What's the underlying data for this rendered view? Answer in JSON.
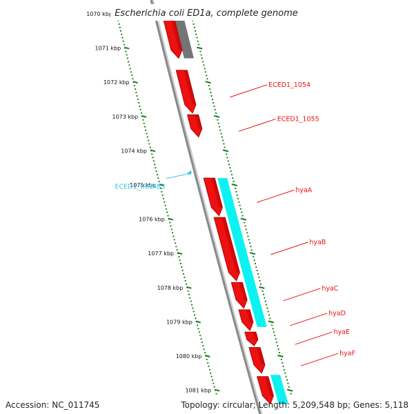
{
  "title": "Escherichia coli ED1a, complete genome",
  "accession": "Accession: NC_011745",
  "summary": "Topology: circular; Length: 5,209,548 bp; Genes: 5,118",
  "colors": {
    "forward_gene": "#ee1111",
    "forward_shadow": "#b30000",
    "rna": "#33c3e8",
    "rna_band": "#00f0f0",
    "gray_band": "#666666",
    "backbone": "#8a8a8a",
    "ruler": "#1a7d1a"
  },
  "axis": {
    "unit": "kbp",
    "ticks": [
      {
        "kbp": 1070,
        "label": "1070 kbp"
      },
      {
        "kbp": 1071,
        "label": "1071 kbp"
      },
      {
        "kbp": 1072,
        "label": "1072 kbp"
      },
      {
        "kbp": 1073,
        "label": "1073 kbp"
      },
      {
        "kbp": 1074,
        "label": "1074 kbp"
      },
      {
        "kbp": 1075,
        "label": "1075 kbp"
      },
      {
        "kbp": 1076,
        "label": "1076 kbp"
      },
      {
        "kbp": 1077,
        "label": "1077 kbp"
      },
      {
        "kbp": 1078,
        "label": "1078 kbp"
      },
      {
        "kbp": 1079,
        "label": "1079 kbp"
      },
      {
        "kbp": 1080,
        "label": "1080 kbp"
      },
      {
        "kbp": 1081,
        "label": "1081 kbp"
      }
    ]
  },
  "genes": [
    {
      "name": "",
      "start": 1069.8,
      "end": 1071.3,
      "strand": "+"
    },
    {
      "name": "ECED1_1054",
      "start": 1071.65,
      "end": 1072.9,
      "strand": "+"
    },
    {
      "name": "ECED1_1055",
      "start": 1072.95,
      "end": 1073.6,
      "strand": "+"
    },
    {
      "name": "hyaA",
      "start": 1074.8,
      "end": 1075.9,
      "strand": "+"
    },
    {
      "name": "hyaB",
      "start": 1075.95,
      "end": 1077.8,
      "strand": "+"
    },
    {
      "name": "hyaC",
      "start": 1077.85,
      "end": 1078.6,
      "strand": "+"
    },
    {
      "name": "hyaD",
      "start": 1078.65,
      "end": 1079.25,
      "strand": "+"
    },
    {
      "name": "hyaE",
      "start": 1079.3,
      "end": 1079.7,
      "strand": "+"
    },
    {
      "name": "hyaF",
      "start": 1079.75,
      "end": 1080.5,
      "strand": "+"
    },
    {
      "name": "",
      "start": 1080.6,
      "end": 1081.4,
      "strand": "+"
    }
  ],
  "rna": [
    {
      "name": "ECED1_tRNA83",
      "position": 1074.65,
      "strand": "-"
    }
  ],
  "feature_bands": [
    {
      "type": "gray",
      "start": 1069.8,
      "end": 1071.3
    },
    {
      "type": "cyan",
      "start": 1074.8,
      "end": 1079.15
    },
    {
      "type": "cyan",
      "start": 1080.55,
      "end": 1081.4
    }
  ]
}
